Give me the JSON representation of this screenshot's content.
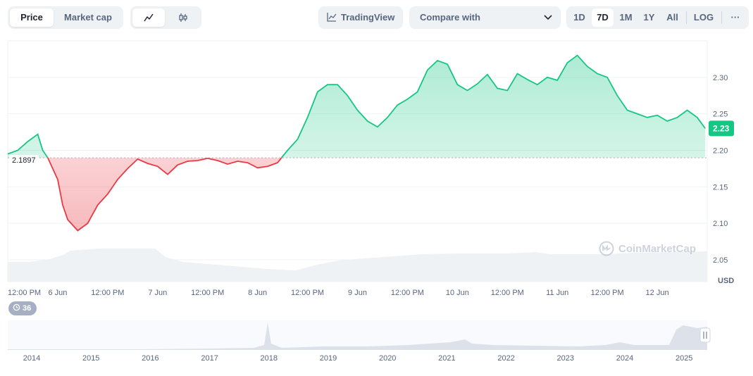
{
  "toolbar": {
    "view_tabs": [
      "Price",
      "Market cap"
    ],
    "tradingview_label": "TradingView",
    "compare_label": "Compare with",
    "ranges": [
      "1D",
      "7D",
      "1M",
      "1Y",
      "All"
    ],
    "active_range": "7D",
    "log_label": "LOG",
    "more_label": "···"
  },
  "watermark": "CoinMarketCap",
  "events_badge": "36",
  "colors": {
    "up": "#16c784",
    "down": "#ea3943",
    "accent": "#16c784"
  },
  "chart_data": [
    {
      "type": "area",
      "x_ticks": [
        "12:00 PM",
        "6 Jun",
        "12:00 PM",
        "7 Jun",
        "12:00 PM",
        "8 Jun",
        "12:00 PM",
        "9 Jun",
        "12:00 PM",
        "10 Jun",
        "12:00 PM",
        "11 Jun",
        "12:00 PM",
        "12 Jun"
      ],
      "y_ticks": [
        "2.30",
        "2.25",
        "2.20",
        "2.15",
        "2.10",
        "2.05"
      ],
      "ylabel": "USD",
      "ylim": [
        2.02,
        2.35
      ],
      "baseline": 2.1897,
      "baseline_label": "2.1897",
      "current_label": "2.23",
      "grid": true,
      "series": [
        {
          "x": [
            0.0,
            0.1,
            0.2,
            0.3,
            0.35,
            0.4,
            0.45,
            0.5,
            0.55,
            0.6,
            0.7,
            0.8,
            0.9,
            1.0,
            1.1,
            1.2,
            1.3,
            1.4,
            1.5,
            1.6,
            1.7,
            1.8,
            1.9,
            2.0,
            2.1,
            2.2,
            2.3,
            2.4,
            2.5,
            2.6,
            2.7,
            2.8,
            2.9,
            3.0,
            3.1,
            3.2,
            3.3,
            3.4,
            3.5,
            3.6,
            3.7,
            3.8,
            3.9,
            4.0,
            4.1,
            4.2,
            4.3,
            4.4,
            4.5,
            4.6,
            4.7,
            4.8,
            4.9,
            5.0,
            5.1,
            5.2,
            5.3,
            5.4,
            5.5,
            5.6,
            5.7,
            5.8,
            5.9,
            6.0,
            6.1,
            6.2,
            6.3,
            6.4,
            6.5,
            6.6,
            6.7,
            6.8,
            6.9,
            6.98
          ],
          "y": [
            2.195,
            2.2,
            2.212,
            2.222,
            2.2,
            2.19,
            2.175,
            2.16,
            2.125,
            2.105,
            2.09,
            2.1,
            2.125,
            2.14,
            2.16,
            2.175,
            2.188,
            2.182,
            2.178,
            2.167,
            2.18,
            2.185,
            2.186,
            2.189,
            2.186,
            2.181,
            2.185,
            2.183,
            2.176,
            2.178,
            2.183,
            2.2,
            2.215,
            2.245,
            2.28,
            2.29,
            2.29,
            2.275,
            2.255,
            2.24,
            2.232,
            2.245,
            2.262,
            2.27,
            2.28,
            2.31,
            2.323,
            2.318,
            2.29,
            2.282,
            2.291,
            2.304,
            2.285,
            2.282,
            2.305,
            2.297,
            2.29,
            2.3,
            2.296,
            2.32,
            2.33,
            2.315,
            2.305,
            2.3,
            2.275,
            2.255,
            2.25,
            2.245,
            2.248,
            2.24,
            2.245,
            2.255,
            2.245,
            2.23
          ]
        }
      ]
    },
    {
      "type": "area",
      "x_ticks": [
        "2014",
        "2015",
        "2016",
        "2017",
        "2018",
        "2019",
        "2020",
        "2021",
        "2022",
        "2023",
        "2024",
        "2025"
      ]
    }
  ]
}
